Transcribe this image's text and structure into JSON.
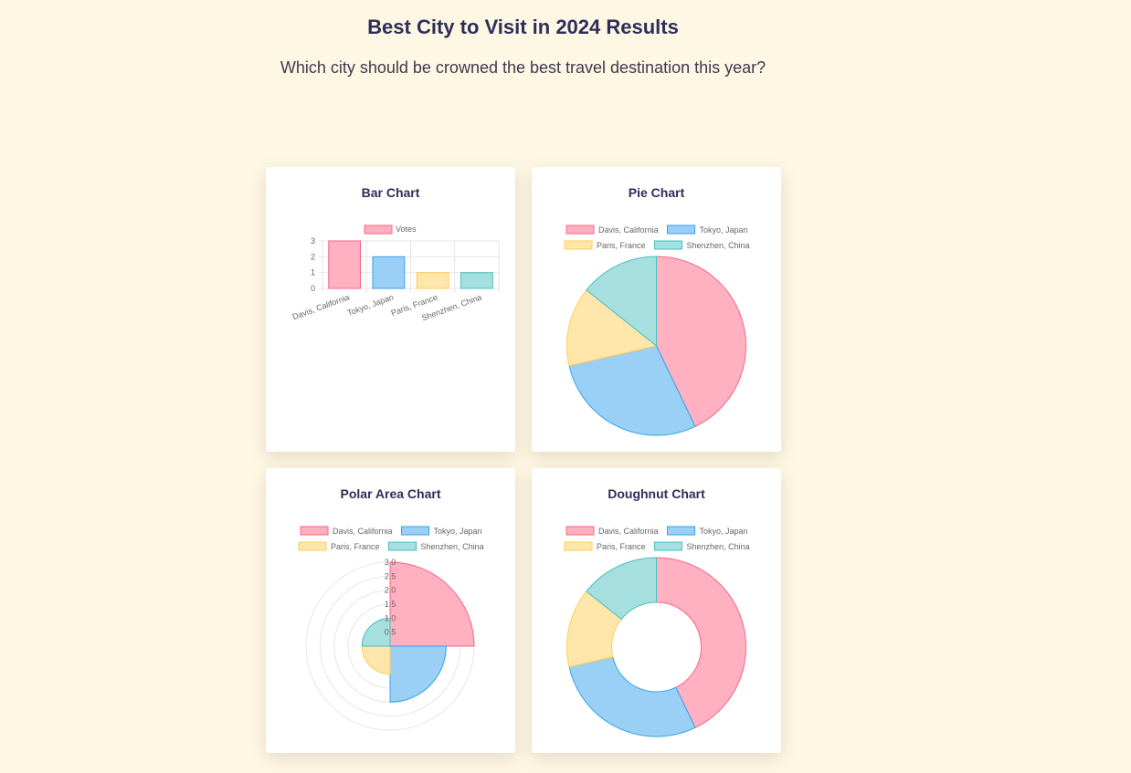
{
  "page": {
    "title": "Best City to Visit in 2024 Results",
    "subtitle": "Which city should be crowned the best travel destination this year?"
  },
  "colors": {
    "fills": [
      "#ffb1c1",
      "#9ad0f5",
      "#ffe6aa",
      "#a5dfdf"
    ],
    "borders": [
      "#ff6384",
      "#36a2eb",
      "#ffcd56",
      "#4bc0c0"
    ]
  },
  "chart_data": [
    {
      "type": "bar",
      "title": "Bar Chart",
      "categories": [
        "Davis, California",
        "Tokyo, Japan",
        "Paris, France",
        "Shenzhen, China"
      ],
      "series": [
        {
          "name": "Votes",
          "values": [
            3,
            2,
            1,
            1
          ]
        }
      ],
      "ylim": [
        0,
        3
      ],
      "yticks": [
        "0",
        "1",
        "2",
        "3"
      ],
      "grid": true,
      "legend": "top"
    },
    {
      "type": "pie",
      "title": "Pie Chart",
      "categories": [
        "Davis, California",
        "Tokyo, Japan",
        "Paris, France",
        "Shenzhen, China"
      ],
      "values": [
        3,
        2,
        1,
        1
      ],
      "legend": "top"
    },
    {
      "type": "polarArea",
      "title": "Polar Area Chart",
      "categories": [
        "Davis, California",
        "Tokyo, Japan",
        "Paris, France",
        "Shenzhen, China"
      ],
      "values": [
        3,
        2,
        1,
        1
      ],
      "rlim": [
        0,
        3
      ],
      "rticks": [
        "0.5",
        "1.0",
        "1.5",
        "2.0",
        "2.5",
        "3.0"
      ],
      "legend": "top"
    },
    {
      "type": "doughnut",
      "title": "Doughnut Chart",
      "categories": [
        "Davis, California",
        "Tokyo, Japan",
        "Paris, France",
        "Shenzhen, China"
      ],
      "values": [
        3,
        2,
        1,
        1
      ],
      "legend": "top"
    }
  ]
}
